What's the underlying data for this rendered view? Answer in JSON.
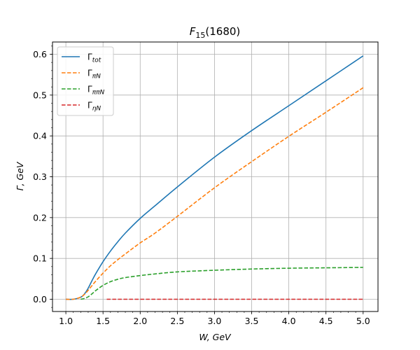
{
  "chart_data": {
    "type": "line",
    "title": "F",
    "title_sub": "15",
    "title_rest": "(1680)",
    "xlabel": "W, GeV",
    "ylabel": "Γ,  GeV",
    "xlim": [
      0.82,
      5.2
    ],
    "ylim": [
      -0.03,
      0.63
    ],
    "xticks": [
      1.0,
      1.5,
      2.0,
      2.5,
      3.0,
      3.5,
      4.0,
      4.5,
      5.0
    ],
    "xtick_labels": [
      "1.0",
      "1.5",
      "2.0",
      "2.5",
      "3.0",
      "3.5",
      "4.0",
      "4.5",
      "5.0"
    ],
    "yticks": [
      0.0,
      0.1,
      0.2,
      0.3,
      0.4,
      0.5,
      0.6
    ],
    "ytick_labels": [
      "0.0",
      "0.1",
      "0.2",
      "0.3",
      "0.4",
      "0.5",
      "0.6"
    ],
    "grid": true,
    "legend_position": "top-left",
    "series": [
      {
        "name": "Γ",
        "sub": "tot",
        "color": "#1f77b4",
        "dash": "solid",
        "x": [
          1.0,
          1.1,
          1.2,
          1.25,
          1.3,
          1.35,
          1.4,
          1.5,
          1.6,
          1.7,
          1.8,
          2.0,
          2.2,
          2.5,
          3.0,
          3.5,
          4.0,
          4.5,
          5.0
        ],
        "y": [
          0.0,
          0.0,
          0.005,
          0.013,
          0.027,
          0.045,
          0.062,
          0.092,
          0.118,
          0.141,
          0.162,
          0.198,
          0.229,
          0.275,
          0.348,
          0.413,
          0.474,
          0.535,
          0.596
        ]
      },
      {
        "name": "Γ",
        "sub": "πN",
        "color": "#ff7f0e",
        "dash": "dashed",
        "x": [
          1.0,
          1.1,
          1.2,
          1.25,
          1.3,
          1.35,
          1.4,
          1.5,
          1.6,
          1.7,
          1.8,
          2.0,
          2.2,
          2.5,
          3.0,
          3.5,
          4.0,
          4.5,
          5.0
        ],
        "y": [
          0.0,
          0.0,
          0.005,
          0.012,
          0.022,
          0.033,
          0.044,
          0.064,
          0.082,
          0.097,
          0.111,
          0.138,
          0.162,
          0.203,
          0.273,
          0.337,
          0.399,
          0.458,
          0.518
        ]
      },
      {
        "name": "Γ",
        "sub": "ππN",
        "color": "#2ca02c",
        "dash": "dashed",
        "x": [
          1.2,
          1.25,
          1.3,
          1.35,
          1.4,
          1.5,
          1.6,
          1.7,
          1.8,
          2.0,
          2.2,
          2.5,
          3.0,
          3.5,
          4.0,
          4.5,
          5.0
        ],
        "y": [
          0.0,
          0.002,
          0.006,
          0.013,
          0.021,
          0.034,
          0.043,
          0.049,
          0.053,
          0.058,
          0.062,
          0.067,
          0.071,
          0.074,
          0.076,
          0.077,
          0.078
        ]
      },
      {
        "name": "Γ",
        "sub": "ηN",
        "color": "#d62728",
        "dash": "dashed",
        "x": [
          1.55,
          2.0,
          3.0,
          4.0,
          5.0
        ],
        "y": [
          0.0,
          0.0,
          0.0,
          0.0,
          0.0
        ]
      }
    ]
  }
}
